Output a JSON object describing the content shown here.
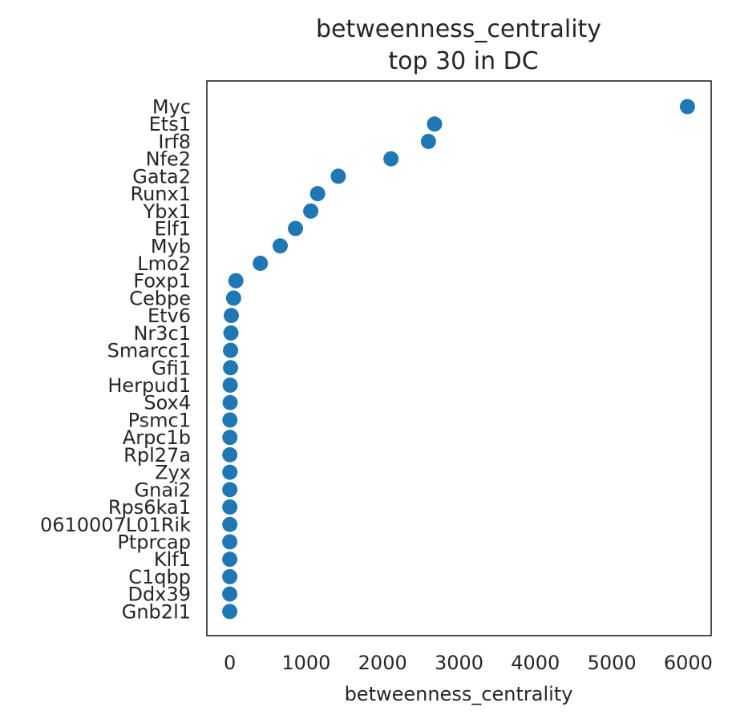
{
  "chart_data": {
    "type": "scatter",
    "title_line1": "betweenness_centrality",
    "title_line2": "top 30 in DC",
    "xlabel": "betweenness_centrality",
    "ylabel": "",
    "xlim": [
      -300,
      6300
    ],
    "xticks": [
      0,
      1000,
      2000,
      3000,
      4000,
      5000,
      6000
    ],
    "xtick_labels": [
      "0",
      "1000",
      "2000",
      "3000",
      "4000",
      "5000",
      "6000"
    ],
    "grid": false,
    "legend": "none",
    "marker_color": "#1f77b4",
    "categories": [
      "Myc",
      "Ets1",
      "Irf8",
      "Nfe2",
      "Gata2",
      "Runx1",
      "Ybx1",
      "Elf1",
      "Myb",
      "Lmo2",
      "Foxp1",
      "Cebpe",
      "Etv6",
      "Nr3c1",
      "Smarcc1",
      "Gfi1",
      "Herpud1",
      "Sox4",
      "Psmc1",
      "Arpc1b",
      "Rpl27a",
      "Zyx",
      "Gnai2",
      "Rps6ka1",
      "0610007L01Rik",
      "Ptprcap",
      "Klf1",
      "C1qbp",
      "Ddx39",
      "Gnb2l1"
    ],
    "values": [
      5990,
      2680,
      2600,
      2110,
      1420,
      1150,
      1060,
      860,
      660,
      400,
      80,
      50,
      20,
      15,
      10,
      10,
      5,
      5,
      2,
      2,
      1,
      1,
      1,
      1,
      1,
      0,
      0,
      0,
      0,
      0
    ]
  }
}
